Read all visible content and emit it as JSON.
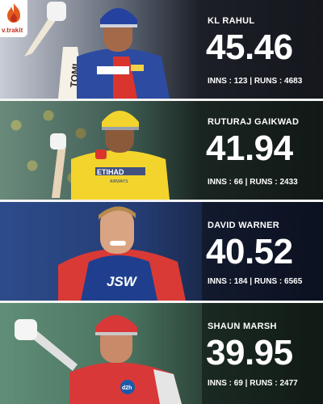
{
  "brand": {
    "name": "v.trakit"
  },
  "players": [
    {
      "name": "KL RAHUL",
      "average": "45.46",
      "stats": "INNS : 123 | RUNS : 4683",
      "jersey_text": "TOMI"
    },
    {
      "name": "RUTURAJ GAIKWAD",
      "average": "41.94",
      "stats": "INNS : 66 | RUNS : 2433",
      "jersey_text": "ETIHAD",
      "jersey_subtext": "AIRWAYS"
    },
    {
      "name": "DAVID WARNER",
      "average": "40.52",
      "stats": "INNS : 184 | RUNS : 6565",
      "jersey_text": "JSW"
    },
    {
      "name": "SHAUN MARSH",
      "average": "39.95",
      "stats": "INNS : 69 | RUNS : 2477",
      "jersey_text": "d2h"
    }
  ]
}
